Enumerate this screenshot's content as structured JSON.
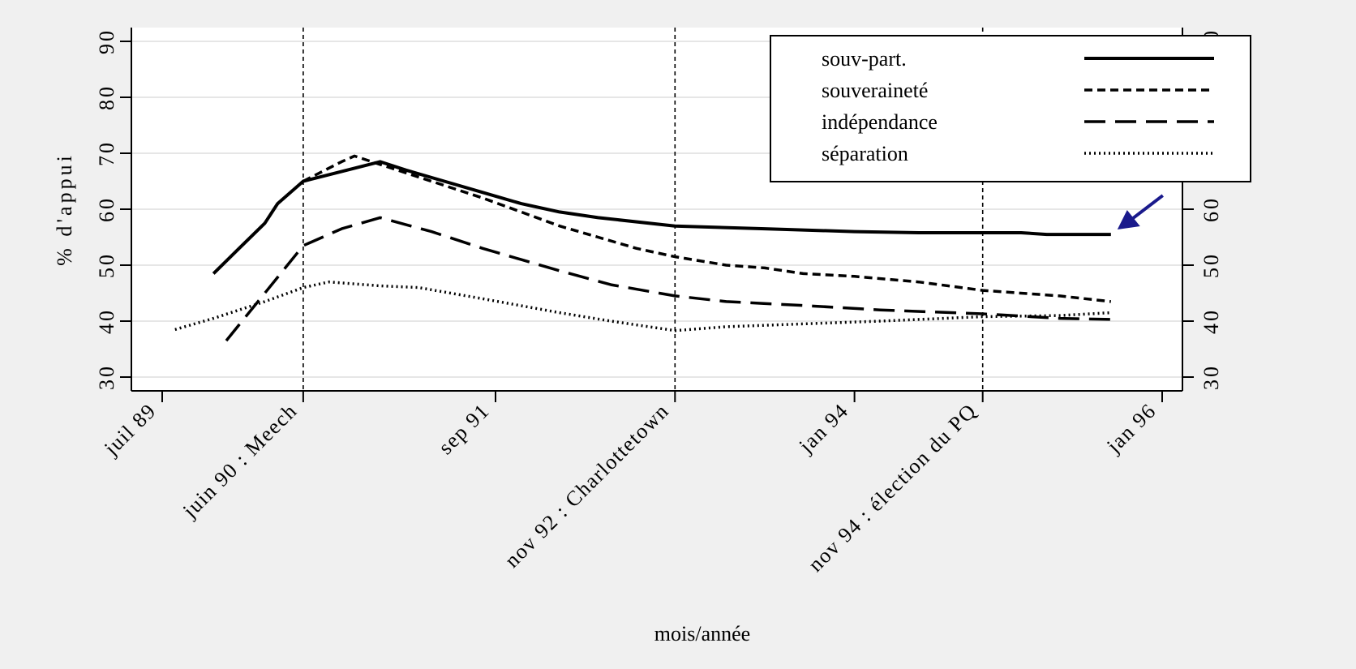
{
  "chart_data": {
    "type": "line",
    "xlabel": "mois/année",
    "ylabel": "% d'appui",
    "ylim": [
      30,
      90
    ],
    "y_ticks": [
      30,
      40,
      50,
      60,
      70,
      80,
      90
    ],
    "xlim": [
      "1989-07",
      "1996-01"
    ],
    "x_ticks": [
      {
        "date": "1989-07",
        "label": "juil 89"
      },
      {
        "date": "1990-06",
        "label": "juin 90 : Meech"
      },
      {
        "date": "1991-09",
        "label": "sep 91"
      },
      {
        "date": "1992-11",
        "label": "nov 92 : Charlottetown"
      },
      {
        "date": "1994-01",
        "label": "jan 94"
      },
      {
        "date": "1994-11",
        "label": "nov 94 : élection du PQ"
      },
      {
        "date": "1996-01",
        "label": "jan 96"
      }
    ],
    "event_lines": [
      "1990-06",
      "1992-11",
      "1994-11"
    ],
    "grid": true,
    "legend_position": "top-right",
    "series": [
      {
        "name": "souv-part.",
        "style": "solid",
        "points": [
          [
            "1989-11",
            48.5
          ],
          [
            "1990-01",
            53
          ],
          [
            "1990-03",
            57.5
          ],
          [
            "1990-04",
            61
          ],
          [
            "1990-06",
            65
          ],
          [
            "1990-12",
            68.5
          ],
          [
            "1991-02",
            67
          ],
          [
            "1991-05",
            65
          ],
          [
            "1991-08",
            63
          ],
          [
            "1991-11",
            61
          ],
          [
            "1992-02",
            59.5
          ],
          [
            "1992-05",
            58.5
          ],
          [
            "1992-11",
            57
          ],
          [
            "1993-06",
            56.5
          ],
          [
            "1994-01",
            56
          ],
          [
            "1994-06",
            55.8
          ],
          [
            "1995-02",
            55.8
          ],
          [
            "1995-04",
            55.5
          ],
          [
            "1995-09",
            55.5
          ]
        ]
      },
      {
        "name": "souveraineté",
        "style": "dashed",
        "points": [
          [
            "1990-06",
            65
          ],
          [
            "1990-09",
            68.5
          ],
          [
            "1990-10",
            69.5
          ],
          [
            "1990-12",
            68
          ],
          [
            "1991-04",
            65
          ],
          [
            "1991-08",
            62
          ],
          [
            "1991-11",
            59.5
          ],
          [
            "1992-02",
            57
          ],
          [
            "1992-05",
            55
          ],
          [
            "1992-08",
            53
          ],
          [
            "1992-11",
            51.5
          ],
          [
            "1993-03",
            50
          ],
          [
            "1993-06",
            49.5
          ],
          [
            "1993-09",
            48.5
          ],
          [
            "1994-01",
            48
          ],
          [
            "1994-06",
            47
          ],
          [
            "1994-11",
            45.5
          ],
          [
            "1995-05",
            44.5
          ],
          [
            "1995-09",
            43.5
          ]
        ]
      },
      {
        "name": "indépendance",
        "style": "longdash",
        "points": [
          [
            "1989-12",
            36.5
          ],
          [
            "1990-03",
            45
          ],
          [
            "1990-06",
            53.5
          ],
          [
            "1990-09",
            56.5
          ],
          [
            "1990-12",
            58.5
          ],
          [
            "1991-04",
            56
          ],
          [
            "1991-08",
            53
          ],
          [
            "1991-11",
            51
          ],
          [
            "1992-02",
            49
          ],
          [
            "1992-06",
            46.5
          ],
          [
            "1992-11",
            44.5
          ],
          [
            "1993-03",
            43.5
          ],
          [
            "1993-09",
            42.8
          ],
          [
            "1994-03",
            42
          ],
          [
            "1994-11",
            41.3
          ],
          [
            "1995-05",
            40.5
          ],
          [
            "1995-09",
            40.3
          ]
        ]
      },
      {
        "name": "séparation",
        "style": "dotted",
        "points": [
          [
            "1989-08",
            38.5
          ],
          [
            "1989-11",
            40.5
          ],
          [
            "1990-03",
            43.5
          ],
          [
            "1990-06",
            46
          ],
          [
            "1990-08",
            47
          ],
          [
            "1990-12",
            46.3
          ],
          [
            "1991-03",
            46
          ],
          [
            "1991-08",
            44
          ],
          [
            "1992-02",
            41.5
          ],
          [
            "1992-06",
            40
          ],
          [
            "1992-11",
            38.3
          ],
          [
            "1993-03",
            39
          ],
          [
            "1993-09",
            39.5
          ],
          [
            "1994-03",
            40
          ],
          [
            "1994-11",
            40.8
          ],
          [
            "1995-05",
            41
          ],
          [
            "1995-09",
            41.5
          ]
        ]
      }
    ],
    "annotation": {
      "type": "arrow",
      "color": "#1a1a8c",
      "target": [
        "1995-09",
        55.5
      ]
    }
  }
}
